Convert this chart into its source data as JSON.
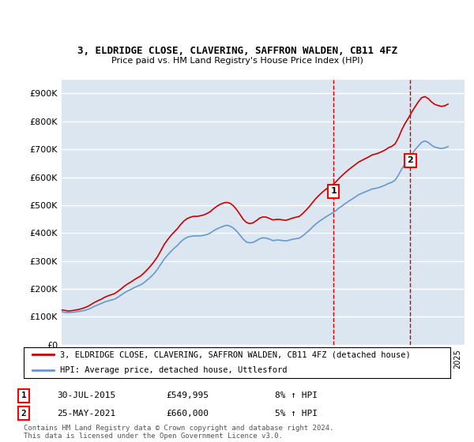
{
  "title": "3, ELDRIDGE CLOSE, CLAVERING, SAFFRON WALDEN, CB11 4FZ",
  "subtitle": "Price paid vs. HM Land Registry's House Price Index (HPI)",
  "ylabel_ticks": [
    "£0",
    "£100K",
    "£200K",
    "£300K",
    "£400K",
    "£500K",
    "£600K",
    "£700K",
    "£800K",
    "£900K"
  ],
  "ytick_values": [
    0,
    100000,
    200000,
    300000,
    400000,
    500000,
    600000,
    700000,
    800000,
    900000
  ],
  "ylim": [
    0,
    950000
  ],
  "xlim_start": 1995.0,
  "xlim_end": 2025.5,
  "background_color": "#ffffff",
  "plot_bg_color": "#dce6f1",
  "grid_color": "#ffffff",
  "red_line_color": "#cc0000",
  "blue_line_color": "#6699cc",
  "dashed_line_color": "#cc0000",
  "transaction1_x": 2015.58,
  "transaction1_y": 549995,
  "transaction2_x": 2021.4,
  "transaction2_y": 660000,
  "legend_entries": [
    "3, ELDRIDGE CLOSE, CLAVERING, SAFFRON WALDEN, CB11 4FZ (detached house)",
    "HPI: Average price, detached house, Uttlesford"
  ],
  "transaction_details": [
    {
      "num": 1,
      "date": "30-JUL-2015",
      "price": "£549,995",
      "hpi": "8% ↑ HPI"
    },
    {
      "num": 2,
      "date": "25-MAY-2021",
      "price": "£660,000",
      "hpi": "5% ↑ HPI"
    }
  ],
  "footer": "Contains HM Land Registry data © Crown copyright and database right 2024.\nThis data is licensed under the Open Government Licence v3.0.",
  "hpi_data": {
    "dates": [
      1995.0,
      1995.25,
      1995.5,
      1995.75,
      1996.0,
      1996.25,
      1996.5,
      1996.75,
      1997.0,
      1997.25,
      1997.5,
      1997.75,
      1998.0,
      1998.25,
      1998.5,
      1998.75,
      1999.0,
      1999.25,
      1999.5,
      1999.75,
      2000.0,
      2000.25,
      2000.5,
      2000.75,
      2001.0,
      2001.25,
      2001.5,
      2001.75,
      2002.0,
      2002.25,
      2002.5,
      2002.75,
      2003.0,
      2003.25,
      2003.5,
      2003.75,
      2004.0,
      2004.25,
      2004.5,
      2004.75,
      2005.0,
      2005.25,
      2005.5,
      2005.75,
      2006.0,
      2006.25,
      2006.5,
      2006.75,
      2007.0,
      2007.25,
      2007.5,
      2007.75,
      2008.0,
      2008.25,
      2008.5,
      2008.75,
      2009.0,
      2009.25,
      2009.5,
      2009.75,
      2010.0,
      2010.25,
      2010.5,
      2010.75,
      2011.0,
      2011.25,
      2011.5,
      2011.75,
      2012.0,
      2012.25,
      2012.5,
      2012.75,
      2013.0,
      2013.25,
      2013.5,
      2013.75,
      2014.0,
      2014.25,
      2014.5,
      2014.75,
      2015.0,
      2015.25,
      2015.5,
      2015.75,
      2016.0,
      2016.25,
      2016.5,
      2016.75,
      2017.0,
      2017.25,
      2017.5,
      2017.75,
      2018.0,
      2018.25,
      2018.5,
      2018.75,
      2019.0,
      2019.25,
      2019.5,
      2019.75,
      2020.0,
      2020.25,
      2020.5,
      2020.75,
      2021.0,
      2021.25,
      2021.5,
      2021.75,
      2022.0,
      2022.25,
      2022.5,
      2022.75,
      2023.0,
      2023.25,
      2023.5,
      2023.75,
      2024.0,
      2024.25
    ],
    "values": [
      118000,
      116000,
      115000,
      116000,
      117000,
      119000,
      121000,
      123000,
      127000,
      132000,
      138000,
      143000,
      148000,
      153000,
      157000,
      160000,
      163000,
      170000,
      178000,
      186000,
      193000,
      198000,
      205000,
      210000,
      215000,
      223000,
      233000,
      243000,
      255000,
      270000,
      288000,
      306000,
      320000,
      333000,
      345000,
      355000,
      368000,
      378000,
      385000,
      388000,
      390000,
      390000,
      390000,
      392000,
      395000,
      400000,
      408000,
      415000,
      420000,
      425000,
      428000,
      425000,
      418000,
      407000,
      393000,
      378000,
      368000,
      365000,
      367000,
      373000,
      380000,
      383000,
      382000,
      378000,
      373000,
      375000,
      375000,
      373000,
      372000,
      375000,
      378000,
      380000,
      382000,
      390000,
      400000,
      410000,
      422000,
      433000,
      442000,
      450000,
      458000,
      465000,
      472000,
      480000,
      490000,
      498000,
      507000,
      515000,
      522000,
      530000,
      538000,
      543000,
      548000,
      553000,
      558000,
      560000,
      563000,
      567000,
      572000,
      578000,
      582000,
      590000,
      608000,
      630000,
      648000,
      665000,
      682000,
      698000,
      712000,
      725000,
      730000,
      725000,
      715000,
      708000,
      705000,
      703000,
      705000,
      710000
    ]
  },
  "property_data": {
    "dates": [
      1995.0,
      1995.25,
      1995.5,
      1995.75,
      1996.0,
      1996.25,
      1996.5,
      1996.75,
      1997.0,
      1997.25,
      1997.5,
      1997.75,
      1998.0,
      1998.25,
      1998.5,
      1998.75,
      1999.0,
      1999.25,
      1999.5,
      1999.75,
      2000.0,
      2000.25,
      2000.5,
      2000.75,
      2001.0,
      2001.25,
      2001.5,
      2001.75,
      2002.0,
      2002.25,
      2002.5,
      2002.75,
      2003.0,
      2003.25,
      2003.5,
      2003.75,
      2004.0,
      2004.25,
      2004.5,
      2004.75,
      2005.0,
      2005.25,
      2005.5,
      2005.75,
      2006.0,
      2006.25,
      2006.5,
      2006.75,
      2007.0,
      2007.25,
      2007.5,
      2007.75,
      2008.0,
      2008.25,
      2008.5,
      2008.75,
      2009.0,
      2009.25,
      2009.5,
      2009.75,
      2010.0,
      2010.25,
      2010.5,
      2010.75,
      2011.0,
      2011.25,
      2011.5,
      2011.75,
      2012.0,
      2012.25,
      2012.5,
      2012.75,
      2013.0,
      2013.25,
      2013.5,
      2013.75,
      2014.0,
      2014.25,
      2014.5,
      2014.75,
      2015.0,
      2015.25,
      2015.5,
      2015.75,
      2016.0,
      2016.25,
      2016.5,
      2016.75,
      2017.0,
      2017.25,
      2017.5,
      2017.75,
      2018.0,
      2018.25,
      2018.5,
      2018.75,
      2019.0,
      2019.25,
      2019.5,
      2019.75,
      2020.0,
      2020.25,
      2020.5,
      2020.75,
      2021.0,
      2021.25,
      2021.5,
      2021.75,
      2022.0,
      2022.25,
      2022.5,
      2022.75,
      2023.0,
      2023.25,
      2023.5,
      2023.75,
      2024.0,
      2024.25
    ],
    "values": [
      125000,
      123000,
      121000,
      122000,
      124000,
      126000,
      129000,
      133000,
      138000,
      145000,
      152000,
      158000,
      163000,
      170000,
      175000,
      179000,
      183000,
      191000,
      200000,
      210000,
      218000,
      225000,
      233000,
      240000,
      247000,
      258000,
      270000,
      283000,
      298000,
      315000,
      336000,
      358000,
      375000,
      390000,
      403000,
      415000,
      430000,
      443000,
      452000,
      457000,
      460000,
      460000,
      462000,
      465000,
      470000,
      477000,
      487000,
      496000,
      503000,
      508000,
      510000,
      507000,
      498000,
      484000,
      467000,
      449000,
      438000,
      434000,
      437000,
      445000,
      454000,
      458000,
      457000,
      452000,
      447000,
      449000,
      449000,
      447000,
      446000,
      450000,
      454000,
      457000,
      460000,
      470000,
      482000,
      495000,
      510000,
      524000,
      536000,
      547000,
      557000,
      565000,
      573000,
      583000,
      596000,
      607000,
      618000,
      628000,
      637000,
      646000,
      655000,
      661000,
      667000,
      673000,
      680000,
      683000,
      687000,
      692000,
      698000,
      706000,
      711000,
      720000,
      742000,
      770000,
      793000,
      812000,
      833000,
      852000,
      870000,
      885000,
      889000,
      882000,
      870000,
      861000,
      857000,
      854000,
      856000,
      862000
    ]
  }
}
